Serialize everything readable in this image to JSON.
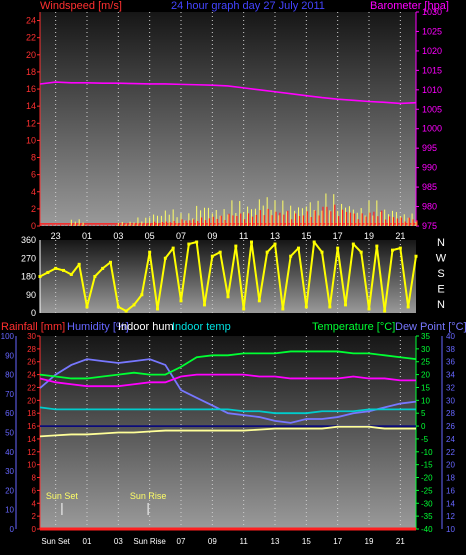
{
  "header": {
    "left": "Windspeed [m/s]",
    "center": "24 hour graph day 27 July 2011",
    "right": "Barometer [hpa]"
  },
  "colors": {
    "wind": "#ff2020",
    "gust": "#ffff66",
    "baro": "#ff00ff",
    "winddir": "#ffff00",
    "humidity": "#7777ff",
    "indoor_hum": "#ff00ff",
    "indoor_temp": "#00cccc",
    "temperature": "#00ff33",
    "dewpoint": "#7777ff",
    "rain": "#ff2020",
    "label_red": "#ff3030",
    "label_blue": "#6666ff",
    "label_white": "#ffffff",
    "label_cyan": "#00e0e0",
    "label_green": "#00ff33"
  },
  "time_ticks": [
    "23",
    "01",
    "03",
    "05",
    "07",
    "09",
    "11",
    "13",
    "15",
    "17",
    "19",
    "21"
  ],
  "bottom_ticks": [
    "Sun Set",
    "01",
    "03",
    "Sun Rise",
    "07",
    "09",
    "11",
    "13",
    "15",
    "17",
    "19",
    "21"
  ],
  "sun": {
    "sunset_label": "Sun Set",
    "sunrise_label": "Sun Rise"
  },
  "compass": [
    "N",
    "W",
    "S",
    "E",
    "N"
  ],
  "chart_data": [
    {
      "type": "line",
      "title": "24 hour graph day 27 July 2011",
      "ylabel": "Windspeed [m/s]",
      "y2label": "Barometer [hpa]",
      "ylim": [
        0,
        25
      ],
      "y2lim": [
        975,
        1030
      ],
      "yticks": [
        0,
        2,
        4,
        6,
        8,
        10,
        12,
        14,
        16,
        18,
        20,
        22,
        24
      ],
      "y2ticks": [
        975,
        980,
        985,
        990,
        995,
        1000,
        1005,
        1010,
        1015,
        1020,
        1025,
        1030
      ],
      "x": [
        0,
        1,
        2,
        3,
        4,
        5,
        6,
        7,
        8,
        9,
        10,
        11,
        12,
        13,
        14,
        15,
        16,
        17,
        18,
        19,
        20,
        21,
        22,
        23,
        24
      ],
      "series": [
        {
          "name": "Barometer [hpa]",
          "axis": "y2",
          "values": [
            1011.5,
            1012,
            1011.8,
            1011.8,
            1011.7,
            1011.7,
            1011.6,
            1011.5,
            1011.5,
            1011.4,
            1011.3,
            1011.2,
            1011,
            1010.5,
            1010,
            1009.5,
            1009,
            1008.5,
            1008,
            1007.6,
            1007.3,
            1007,
            1006.8,
            1006.5,
            1006.7
          ]
        },
        {
          "name": "Windspeed [m/s]",
          "axis": "y",
          "values": [
            0.1,
            0.1,
            0.2,
            0.1,
            0.1,
            0.2,
            0.3,
            0.5,
            0.6,
            0.8,
            1,
            1.2,
            1.5,
            1.5,
            2,
            1.8,
            1.5,
            1.8,
            2.5,
            2,
            1.5,
            1.8,
            1.2,
            1,
            0.8
          ]
        },
        {
          "name": "Gust",
          "axis": "y",
          "values": [
            0,
            0,
            0.8,
            0,
            0,
            0.5,
            1,
            1.5,
            2,
            1.5,
            2.5,
            2,
            3,
            2.5,
            3.5,
            3,
            2.5,
            3,
            3.8,
            2.8,
            2.2,
            3,
            2,
            1.5,
            1
          ]
        }
      ]
    },
    {
      "type": "scatter",
      "ylabel": "Wind direction",
      "ylim": [
        0,
        360
      ],
      "yticks": [
        0,
        90,
        180,
        270,
        360
      ],
      "x": [
        0,
        0.5,
        1,
        1.5,
        2,
        2.5,
        3,
        3.5,
        4,
        4.5,
        5,
        5.5,
        6,
        6.5,
        7,
        7.5,
        8,
        8.5,
        9,
        9.5,
        10,
        10.5,
        11,
        11.5,
        12,
        12.5,
        13,
        13.5,
        14,
        14.5,
        15,
        15.5,
        16,
        16.5,
        17,
        17.5,
        18,
        18.5,
        19,
        19.5,
        20,
        20.5,
        21,
        21.5,
        22,
        22.5,
        23,
        23.5,
        24
      ],
      "values": [
        180,
        200,
        220,
        210,
        190,
        240,
        30,
        180,
        220,
        250,
        30,
        10,
        40,
        90,
        300,
        20,
        270,
        320,
        60,
        340,
        350,
        40,
        280,
        300,
        80,
        330,
        20,
        350,
        60,
        300,
        340,
        20,
        280,
        320,
        30,
        350,
        300,
        30,
        320,
        40,
        340,
        300,
        20,
        330,
        10,
        310,
        320,
        30,
        280
      ]
    },
    {
      "type": "line",
      "ylabel": "Humidity [%]",
      "ylim": [
        0,
        100
      ],
      "yticks": [
        0,
        10,
        20,
        30,
        40,
        50,
        60,
        70,
        80,
        90,
        100
      ],
      "rain_label": "Rainfall [mm]",
      "rain_ticks": [
        0,
        2,
        4,
        6,
        8,
        10,
        12,
        14,
        16,
        18,
        20,
        22,
        24,
        26,
        28,
        30
      ],
      "temp_label": "Temperature [°C]",
      "temp_ticks": [
        -40,
        -35,
        -30,
        -25,
        -20,
        -15,
        -10,
        -5,
        0,
        5,
        10,
        15,
        20,
        25,
        30,
        35
      ],
      "temp_lim": [
        -40,
        35
      ],
      "dew_label": "Dew Point [°C]",
      "dew_ticks": [
        10,
        12,
        14,
        16,
        18,
        20,
        22,
        24,
        26,
        28,
        30,
        32,
        34,
        36,
        38,
        40
      ],
      "x": [
        0,
        1,
        2,
        3,
        4,
        5,
        6,
        7,
        8,
        9,
        10,
        11,
        12,
        13,
        14,
        15,
        16,
        17,
        18,
        19,
        20,
        21,
        22,
        23,
        24
      ],
      "series": [
        {
          "name": "Humidity [%]",
          "values": [
            73,
            80,
            85,
            88,
            87,
            86,
            87,
            88,
            85,
            72,
            68,
            64,
            60,
            59,
            58,
            56,
            55,
            57,
            57,
            58,
            60,
            61,
            63,
            65,
            66
          ]
        },
        {
          "name": "Indoor hum",
          "values": [
            78,
            76,
            75,
            74,
            74,
            74,
            75,
            76,
            76,
            79,
            80,
            80,
            80,
            80,
            79,
            79,
            78,
            78,
            78,
            78,
            79,
            78,
            78,
            77,
            77
          ]
        },
        {
          "name": "Indoor temp",
          "values": [
            63,
            62,
            62,
            62,
            62,
            62,
            62,
            62,
            62,
            62,
            62,
            62,
            62,
            61,
            61,
            60,
            60,
            60,
            61,
            61,
            61,
            62,
            62,
            62,
            62
          ]
        },
        {
          "name": "Temperature [°C]",
          "values": [
            80,
            79,
            78,
            78,
            79,
            80,
            81,
            80,
            80,
            84,
            89,
            90,
            90,
            91,
            91,
            91,
            92,
            92,
            92,
            92,
            91,
            91,
            90,
            89,
            88
          ]
        },
        {
          "name": "Dew Point [°C]",
          "values": [
            48,
            48.5,
            49,
            49,
            49.5,
            50,
            50,
            50.5,
            51,
            51,
            51,
            51,
            51,
            51,
            51.5,
            52,
            52,
            52,
            52,
            53,
            53,
            53,
            52,
            52,
            52
          ]
        },
        {
          "name": "Rainfall [mm]",
          "values": [
            0,
            0,
            0,
            0,
            0,
            0,
            0,
            0,
            0,
            0,
            0,
            0,
            0,
            0,
            0,
            0,
            0,
            0,
            0,
            0,
            0,
            0,
            0,
            0,
            0
          ]
        }
      ]
    }
  ],
  "bottom_header": {
    "rain": "Rainfall [mm]",
    "humidity": "Humidity [%]",
    "indoor_hum": "Indoor hum",
    "indoor_temp": "Indoor temp",
    "temperature": "Temperature [°C]",
    "dewpoint": "Dew Point [°C]"
  }
}
